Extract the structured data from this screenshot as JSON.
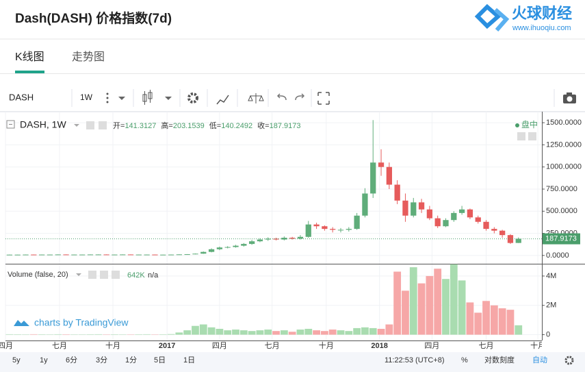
{
  "header": {
    "title": "Dash(DASH) 价格指数(7d)",
    "logo_text": "火球财经",
    "logo_url": "www.ihuoqiu.com"
  },
  "tabs": [
    "K线图",
    "走势图"
  ],
  "toolbar": {
    "symbol": "DASH",
    "interval": "1W"
  },
  "watermark": "charts by TradingView",
  "bottom_bar": {
    "ranges": [
      "5y",
      "1y",
      "6分",
      "3分",
      "1分",
      "5日",
      "1日"
    ],
    "time": "11:22:53 (UTC+8)",
    "percent": "%",
    "log": "对数刻度",
    "auto": "自动"
  },
  "chart_data": [
    {
      "type": "candlestick",
      "legend_title": "DASH, 1W",
      "status": "盘中",
      "ohlc_labels": [
        "开=",
        "高=",
        "低=",
        "收="
      ],
      "up_color": "#5fad7a",
      "down_color": "#e65b5b",
      "open": [
        8,
        9,
        9,
        10,
        9,
        10,
        10,
        11,
        10,
        10,
        10,
        11,
        11,
        10,
        10,
        11,
        10,
        10,
        10,
        9,
        9,
        10,
        12,
        14,
        20,
        40,
        70,
        90,
        95,
        110,
        130,
        160,
        180,
        190,
        180,
        200,
        190,
        210,
        350,
        330,
        300,
        290,
        290,
        300,
        450,
        700,
        1050,
        1000,
        800,
        620,
        450,
        600,
        520,
        420,
        330,
        400,
        480,
        520,
        430,
        380,
        300,
        280,
        230,
        141.3127
      ],
      "high": [
        10,
        10,
        11,
        11,
        11,
        11,
        12,
        12,
        11,
        11,
        12,
        12,
        12,
        11,
        12,
        12,
        11,
        11,
        11,
        10,
        11,
        13,
        15,
        22,
        45,
        80,
        100,
        105,
        120,
        140,
        175,
        195,
        205,
        200,
        215,
        210,
        230,
        390,
        370,
        340,
        320,
        310,
        320,
        480,
        760,
        1530,
        1200,
        1050,
        850,
        700,
        650,
        640,
        560,
        450,
        420,
        500,
        560,
        530,
        450,
        400,
        320,
        290,
        240,
        203.1539
      ],
      "low": [
        7,
        8,
        8,
        8,
        8,
        9,
        9,
        9,
        9,
        9,
        9,
        10,
        9,
        9,
        9,
        9,
        9,
        9,
        8,
        8,
        8,
        9,
        11,
        13,
        18,
        35,
        60,
        80,
        88,
        100,
        120,
        150,
        165,
        170,
        170,
        180,
        180,
        200,
        300,
        280,
        260,
        260,
        270,
        290,
        430,
        650,
        900,
        750,
        580,
        380,
        430,
        480,
        400,
        310,
        320,
        380,
        460,
        410,
        360,
        280,
        250,
        200,
        130,
        140.2492
      ],
      "close": [
        9,
        9,
        10,
        9,
        10,
        10,
        11,
        10,
        10,
        10,
        11,
        11,
        10,
        10,
        11,
        10,
        10,
        10,
        9,
        9,
        10,
        12,
        14,
        20,
        40,
        70,
        90,
        95,
        110,
        130,
        160,
        180,
        190,
        180,
        200,
        190,
        210,
        350,
        330,
        300,
        290,
        290,
        300,
        450,
        700,
        1050,
        1000,
        800,
        620,
        450,
        600,
        520,
        420,
        330,
        400,
        480,
        520,
        430,
        380,
        300,
        280,
        230,
        141,
        187.9173
      ],
      "xlim": [
        0,
        66.4
      ],
      "xticks": [
        {
          "value": 0,
          "label": "四月"
        },
        {
          "value": 6.69,
          "label": "七月"
        },
        {
          "value": 13.3,
          "label": "十月"
        },
        {
          "value": 20,
          "label": "2017"
        },
        {
          "value": 26.5,
          "label": "四月"
        },
        {
          "value": 33,
          "label": "七月"
        },
        {
          "value": 39.7,
          "label": "十月"
        },
        {
          "value": 46.3,
          "label": "2018"
        },
        {
          "value": 52.8,
          "label": "四月"
        },
        {
          "value": 59.5,
          "label": "七月"
        },
        {
          "value": 65.9,
          "label": "十月"
        }
      ],
      "ylim": [
        -94,
        1625
      ],
      "yticks": [
        {
          "value": 0,
          "label": "0.0000"
        },
        {
          "value": 250,
          "label": "250.0000"
        },
        {
          "value": 500,
          "label": "500.0000"
        },
        {
          "value": 750,
          "label": "750.0000"
        },
        {
          "value": 1000,
          "label": "1000.0000"
        },
        {
          "value": 1250,
          "label": "1250.0000"
        },
        {
          "value": 1500,
          "label": "1500.0000"
        }
      ],
      "grid": true
    },
    {
      "type": "bar",
      "legend_title": "Volume (false, 20)",
      "legend_extra": "n/a",
      "up_color": "#a9dcb0",
      "down_color": "#f6a7a7",
      "values": [
        30000,
        25000,
        20000,
        30000,
        25000,
        20000,
        30000,
        25000,
        20000,
        20000,
        25000,
        30000,
        20000,
        25000,
        20000,
        20000,
        25000,
        30000,
        20000,
        25000,
        40000,
        150000,
        300000,
        600000,
        700000,
        500000,
        400000,
        300000,
        350000,
        300000,
        250000,
        300000,
        350000,
        250000,
        300000,
        200000,
        350000,
        400000,
        300000,
        250000,
        350000,
        300000,
        250000,
        450000,
        500000,
        450000,
        400000,
        700000,
        4300000,
        3000000,
        4600000,
        3500000,
        4000000,
        4500000,
        3800000,
        4800000,
        3700000,
        2200000,
        1500000,
        2300000,
        2000000,
        1800000,
        1700000,
        642000
      ],
      "value_labels": [
        null,
        null,
        null,
        null,
        null,
        null,
        null,
        null,
        null,
        null,
        null,
        null,
        null,
        null,
        null,
        null,
        null,
        null,
        null,
        null,
        null,
        null,
        null,
        null,
        null,
        null,
        null,
        null,
        null,
        null,
        null,
        null,
        null,
        null,
        null,
        null,
        null,
        null,
        null,
        null,
        null,
        null,
        null,
        null,
        null,
        null,
        null,
        null,
        null,
        null,
        null,
        null,
        null,
        null,
        null,
        null,
        null,
        null,
        null,
        null,
        null,
        null,
        null,
        "642K"
      ],
      "ylim": [
        -395000,
        4790000
      ],
      "yticks": [
        0,
        {
          "value": 2000000,
          "label": "2M"
        },
        {
          "value": 4000000,
          "label": "4M"
        }
      ]
    }
  ]
}
